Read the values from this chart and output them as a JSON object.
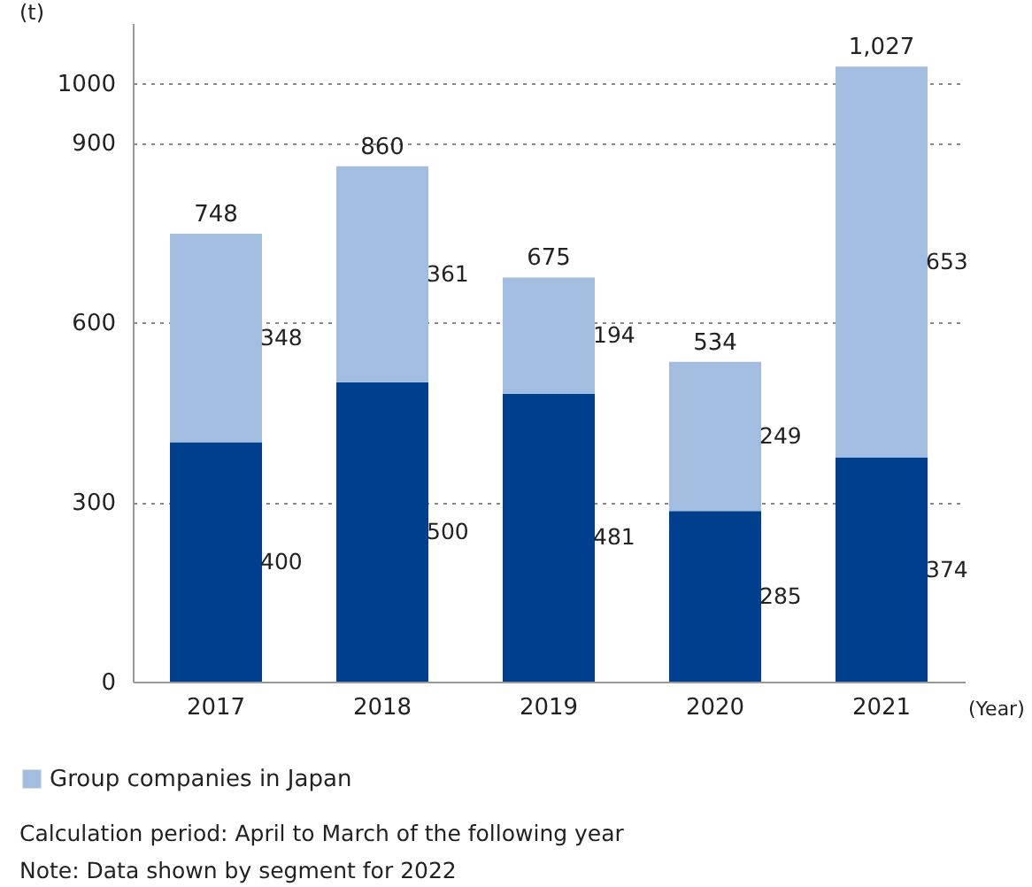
{
  "chart_data": {
    "type": "bar",
    "stacked": true,
    "ylabel": "(t)",
    "xlabel": "(Year)",
    "categories": [
      "2017",
      "2018",
      "2019",
      "2020",
      "2021"
    ],
    "series": [
      {
        "color": "#003f8e",
        "values": [
          400,
          500,
          481,
          285,
          374
        ]
      },
      {
        "name": "Group companies in Japan",
        "color": "#a3bde0",
        "values": [
          348,
          361,
          194,
          249,
          653
        ]
      }
    ],
    "data_labels": true,
    "totals": [
      "748",
      "860",
      "675",
      "534",
      "1,027"
    ],
    "ylim": [
      0,
      1100
    ],
    "yticks": [
      0,
      300,
      600,
      900,
      1000
    ],
    "grid": "y",
    "legend": "bottom",
    "annotations": [
      "Calculation period: April to March of the following year",
      "Note: Data shown by segment for 2022"
    ]
  }
}
